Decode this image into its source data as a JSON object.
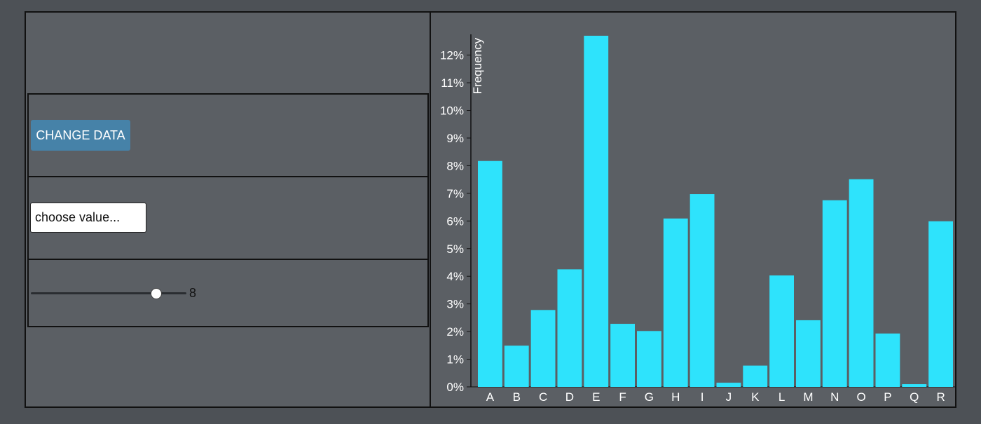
{
  "controls": {
    "change_data_label": "CHANGE DATA",
    "select_placeholder": "choose value...",
    "slider": {
      "value": 8,
      "min": 0,
      "max": 10,
      "readout": "8"
    }
  },
  "colors": {
    "bar": "#2ee3fc",
    "axis": "#111111",
    "text": "#ffffff",
    "button": "#4682a8"
  },
  "chart_data": {
    "type": "bar",
    "title": "",
    "xlabel": "",
    "ylabel": "Frequency",
    "ylim": [
      0,
      12.7
    ],
    "yticks": [
      0,
      1,
      2,
      3,
      4,
      5,
      6,
      7,
      8,
      9,
      10,
      11,
      12
    ],
    "tick_format": "%",
    "categories": [
      "A",
      "B",
      "C",
      "D",
      "E",
      "F",
      "G",
      "H",
      "I",
      "J",
      "K",
      "L",
      "M",
      "N",
      "O",
      "P",
      "Q",
      "R"
    ],
    "values": [
      8.17,
      1.49,
      2.78,
      4.25,
      12.7,
      2.28,
      2.02,
      6.09,
      6.97,
      0.15,
      0.77,
      4.03,
      2.41,
      6.75,
      7.51,
      1.93,
      0.1,
      5.99
    ]
  }
}
